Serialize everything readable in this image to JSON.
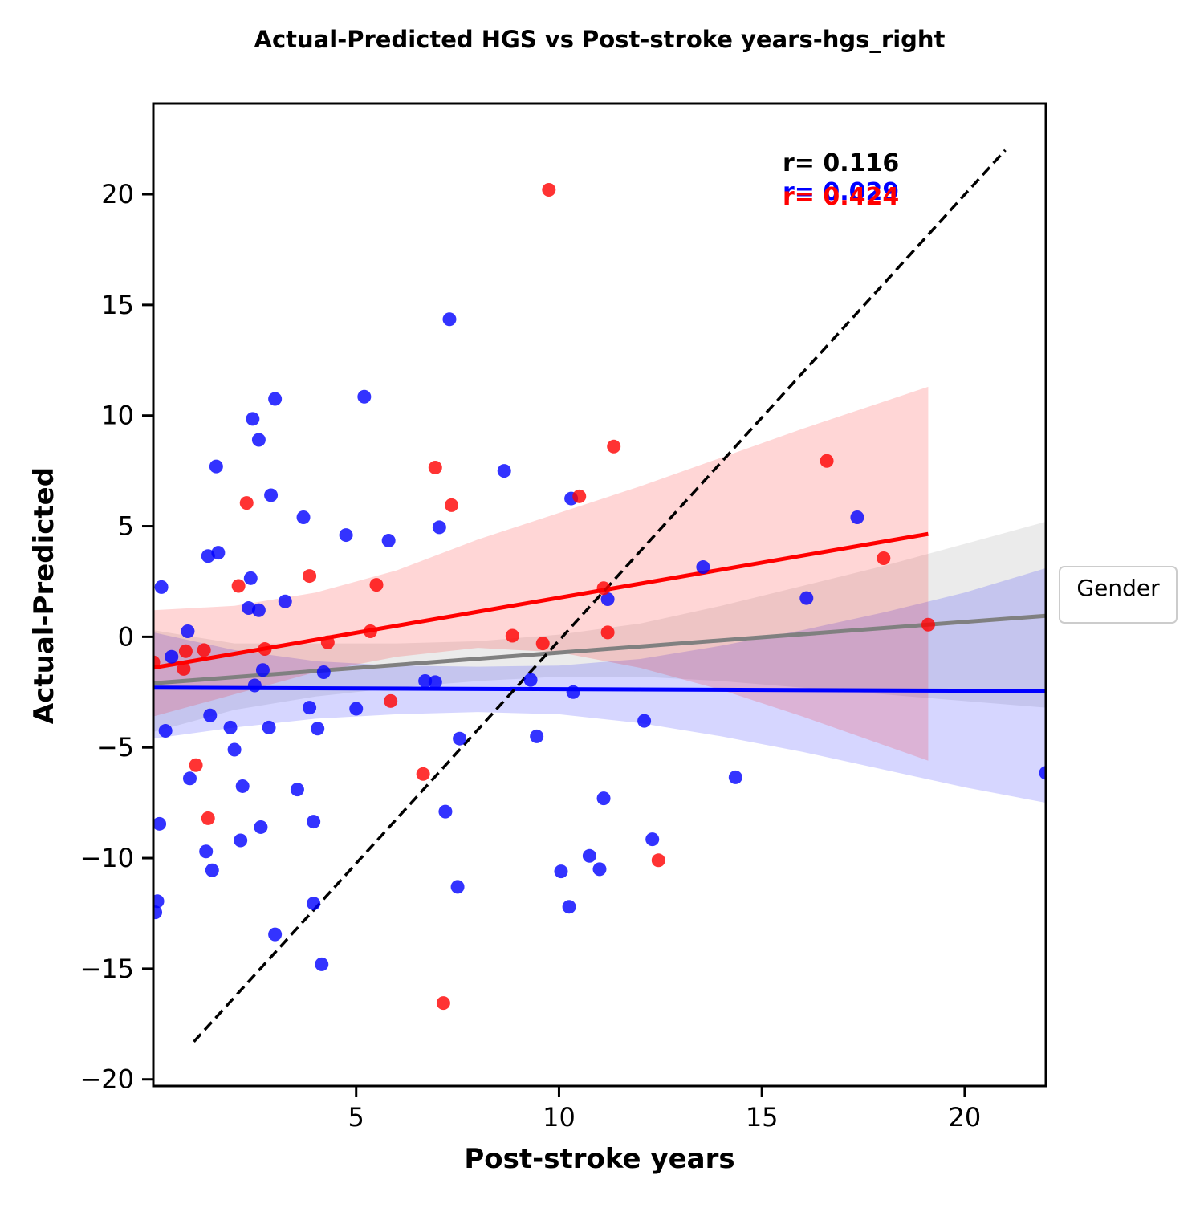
{
  "chart_data": {
    "type": "scatter",
    "title": "Actual-Predicted HGS vs Post-stroke years-hgs_right",
    "xlabel": "Post-stroke years",
    "ylabel": "Actual-Predicted",
    "xlim": [
      0,
      22
    ],
    "ylim": [
      -20.3,
      24.1
    ],
    "x_ticks": [
      5,
      10,
      15,
      20
    ],
    "y_ticks": [
      -20,
      -15,
      -10,
      -5,
      0,
      5,
      10,
      15,
      20
    ],
    "x_tick_labels": [
      "5",
      "10",
      "15",
      "20"
    ],
    "y_tick_labels": [
      "−20",
      "−15",
      "−10",
      "−5",
      "0",
      "5",
      "10",
      "15",
      "20"
    ],
    "grid": false,
    "legend": {
      "title": "Gender",
      "placement": "right-outside",
      "entries": []
    },
    "colors": {
      "female": "#ff0000",
      "male": "#0000ff",
      "overall": "#808080",
      "identity": "#000000"
    },
    "identity_line": {
      "x": [
        1.0,
        21.0
      ],
      "y": [
        -18.3,
        22.0
      ],
      "style": "dashed"
    },
    "annotations": [
      {
        "text": "r= 0.116",
        "color": "#000000"
      },
      {
        "text": "r= 0.029",
        "color": "#0000ff"
      },
      {
        "text": "r= 0.424",
        "color": "#ff0000"
      }
    ],
    "series": [
      {
        "name": "",
        "color": "#ff0000",
        "points": [
          [
            0.0,
            -1.15
          ],
          [
            0.8,
            -0.65
          ],
          [
            0.75,
            -1.45
          ],
          [
            1.25,
            -0.6
          ],
          [
            1.05,
            -5.8
          ],
          [
            1.35,
            -8.2
          ],
          [
            2.1,
            2.3
          ],
          [
            2.3,
            6.05
          ],
          [
            2.75,
            -0.55
          ],
          [
            3.85,
            2.75
          ],
          [
            4.3,
            -0.25
          ],
          [
            5.35,
            0.25
          ],
          [
            5.5,
            2.35
          ],
          [
            5.85,
            -2.9
          ],
          [
            6.65,
            -6.2
          ],
          [
            6.95,
            7.65
          ],
          [
            7.35,
            5.95
          ],
          [
            7.15,
            -16.55
          ],
          [
            8.85,
            0.05
          ],
          [
            9.6,
            -0.3
          ],
          [
            9.75,
            20.2
          ],
          [
            10.5,
            6.35
          ],
          [
            11.1,
            2.2
          ],
          [
            11.2,
            0.2
          ],
          [
            11.35,
            8.6
          ],
          [
            12.45,
            -10.1
          ],
          [
            16.6,
            7.95
          ],
          [
            18.0,
            3.55
          ],
          [
            19.1,
            0.55
          ]
        ],
        "fit": {
          "x": [
            0.0,
            19.1
          ],
          "y": [
            -1.4,
            4.65
          ]
        },
        "ci": {
          "x": [
            0,
            2,
            4,
            6,
            8,
            10,
            12,
            14,
            16,
            19.1
          ],
          "upper": [
            1.2,
            1.4,
            2.0,
            3.0,
            4.4,
            5.6,
            6.8,
            8.1,
            9.4,
            11.3
          ],
          "lower": [
            -3.6,
            -2.6,
            -1.6,
            -0.9,
            -0.5,
            -0.7,
            -1.4,
            -2.4,
            -3.6,
            -5.6
          ]
        }
      },
      {
        "name": "",
        "color": "#0000ff",
        "points": [
          [
            0.05,
            -12.45
          ],
          [
            0.1,
            -11.95
          ],
          [
            0.15,
            -8.45
          ],
          [
            0.2,
            2.25
          ],
          [
            0.3,
            -4.25
          ],
          [
            0.45,
            -0.9
          ],
          [
            0.85,
            0.25
          ],
          [
            0.9,
            -6.4
          ],
          [
            1.3,
            -9.7
          ],
          [
            1.35,
            3.65
          ],
          [
            1.4,
            -3.55
          ],
          [
            1.45,
            -10.55
          ],
          [
            1.55,
            7.7
          ],
          [
            1.6,
            3.8
          ],
          [
            1.9,
            -4.1
          ],
          [
            2.0,
            -5.1
          ],
          [
            2.15,
            -9.2
          ],
          [
            2.2,
            -6.75
          ],
          [
            2.35,
            1.3
          ],
          [
            2.4,
            2.65
          ],
          [
            2.45,
            9.85
          ],
          [
            2.5,
            -2.2
          ],
          [
            2.6,
            1.2
          ],
          [
            2.6,
            8.9
          ],
          [
            2.65,
            -8.6
          ],
          [
            2.7,
            -1.5
          ],
          [
            2.85,
            -4.1
          ],
          [
            2.9,
            6.4
          ],
          [
            3.0,
            -13.45
          ],
          [
            3.0,
            10.75
          ],
          [
            3.25,
            1.6
          ],
          [
            3.55,
            -6.9
          ],
          [
            3.7,
            5.4
          ],
          [
            3.85,
            -3.2
          ],
          [
            3.95,
            -8.35
          ],
          [
            3.95,
            -12.05
          ],
          [
            4.05,
            -4.15
          ],
          [
            4.15,
            -14.8
          ],
          [
            4.2,
            -1.6
          ],
          [
            4.75,
            4.6
          ],
          [
            5.0,
            -3.25
          ],
          [
            5.2,
            10.85
          ],
          [
            5.8,
            4.35
          ],
          [
            6.7,
            -2.0
          ],
          [
            6.95,
            -2.05
          ],
          [
            7.05,
            4.95
          ],
          [
            7.2,
            -7.9
          ],
          [
            7.3,
            14.35
          ],
          [
            7.5,
            -11.3
          ],
          [
            7.55,
            -4.6
          ],
          [
            8.65,
            7.5
          ],
          [
            9.3,
            -1.95
          ],
          [
            9.45,
            -4.5
          ],
          [
            10.05,
            -10.6
          ],
          [
            10.25,
            -12.2
          ],
          [
            10.3,
            6.25
          ],
          [
            10.35,
            -2.5
          ],
          [
            10.75,
            -9.9
          ],
          [
            11.0,
            -10.5
          ],
          [
            11.1,
            -7.3
          ],
          [
            11.2,
            1.7
          ],
          [
            12.1,
            -3.8
          ],
          [
            12.3,
            -9.15
          ],
          [
            13.55,
            3.15
          ],
          [
            14.35,
            -6.35
          ],
          [
            16.1,
            1.75
          ],
          [
            17.35,
            5.4
          ],
          [
            22.0,
            -6.15
          ]
        ],
        "fit": {
          "x": [
            0.0,
            22.0
          ],
          "y": [
            -2.3,
            -2.45
          ]
        },
        "ci": {
          "x": [
            0,
            2,
            4,
            6,
            8,
            10,
            12,
            14,
            16,
            18,
            20,
            22
          ],
          "upper": [
            0.2,
            -0.6,
            -1.1,
            -1.3,
            -1.35,
            -1.3,
            -1.0,
            -0.4,
            0.3,
            1.1,
            2.0,
            3.1
          ],
          "lower": [
            -4.6,
            -4.1,
            -3.7,
            -3.5,
            -3.4,
            -3.5,
            -3.9,
            -4.5,
            -5.2,
            -6.0,
            -6.8,
            -7.5
          ]
        }
      },
      {
        "name": "",
        "color": "#808080",
        "points": [],
        "fit": {
          "x": [
            0.0,
            22.0
          ],
          "y": [
            -2.1,
            0.95
          ]
        },
        "ci": {
          "x": [
            0,
            2,
            4,
            6,
            8,
            10,
            12,
            14,
            16,
            18,
            20,
            22
          ],
          "upper": [
            0.3,
            -0.3,
            -0.3,
            -0.3,
            -0.2,
            0.1,
            0.6,
            1.4,
            2.3,
            3.2,
            4.2,
            5.2
          ],
          "lower": [
            -4.3,
            -3.3,
            -2.7,
            -2.3,
            -2.0,
            -1.8,
            -1.8,
            -2.0,
            -2.3,
            -2.6,
            -2.9,
            -3.2
          ]
        }
      }
    ]
  }
}
